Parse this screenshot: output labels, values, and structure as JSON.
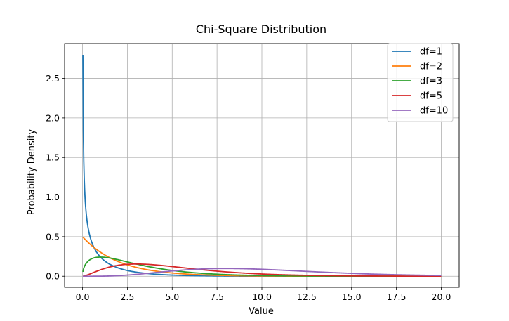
{
  "chart_data": {
    "type": "line",
    "title": "Chi-Square Distribution",
    "xlabel": "Value",
    "ylabel": "Probability Density",
    "xlim": [
      -1,
      21
    ],
    "ylim": [
      -0.14,
      2.94
    ],
    "xticks": [
      0.0,
      2.5,
      5.0,
      7.5,
      10.0,
      12.5,
      15.0,
      17.5,
      20.0
    ],
    "xtick_labels": [
      "0.0",
      "2.5",
      "5.0",
      "7.5",
      "10.0",
      "12.5",
      "15.0",
      "17.5",
      "20.0"
    ],
    "yticks": [
      0.0,
      0.5,
      1.0,
      1.5,
      2.0,
      2.5
    ],
    "ytick_labels": [
      "0.0",
      "0.5",
      "1.0",
      "1.5",
      "2.0",
      "2.5"
    ],
    "grid": true,
    "legend_position": "top-right",
    "x_range": [
      0.02,
      20
    ],
    "series": [
      {
        "name": "df=1",
        "df": 1,
        "color": "#1f77b4"
      },
      {
        "name": "df=2",
        "df": 2,
        "color": "#ff7f0e"
      },
      {
        "name": "df=3",
        "df": 3,
        "color": "#2ca02c"
      },
      {
        "name": "df=5",
        "df": 5,
        "color": "#d62728"
      },
      {
        "name": "df=10",
        "df": 10,
        "color": "#9467bd"
      }
    ]
  }
}
